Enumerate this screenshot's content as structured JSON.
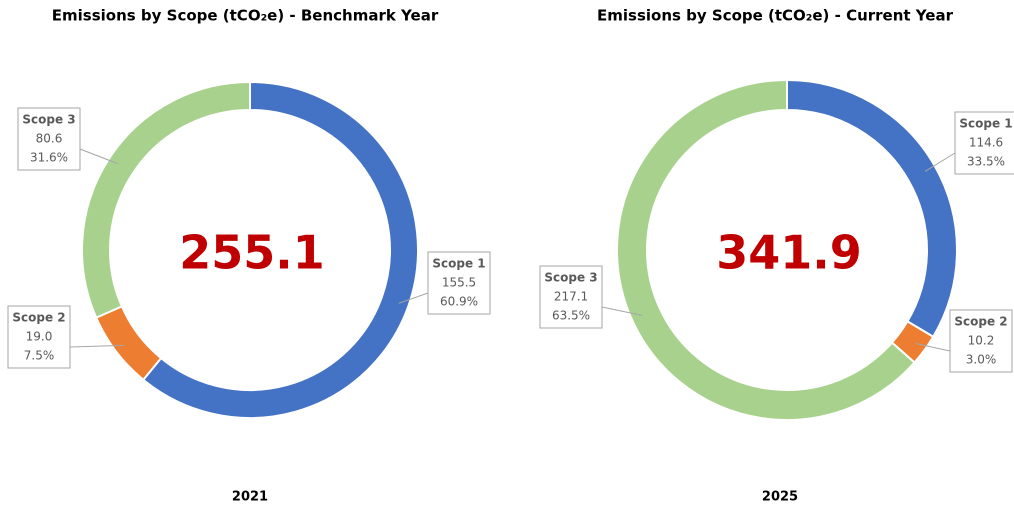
{
  "chart_data": [
    {
      "type": "doughnut",
      "title": "Emissions by Scope (tCO₂e) - Benchmark Year",
      "categories": [
        "Scope 1",
        "Scope 2",
        "Scope 3"
      ],
      "values": [
        155.5,
        19.0,
        80.6
      ],
      "value_labels": [
        "155.5",
        "19.0",
        "80.6"
      ],
      "percentages": [
        {
          "value": 60.9,
          "label": "60.9%"
        },
        {
          "value": 7.5,
          "label": "7.5%"
        },
        {
          "value": 31.6,
          "label": "31.6%"
        }
      ],
      "colors": [
        "#4472c4",
        "#ed7d31",
        "#a9d18e"
      ],
      "total": 255.1,
      "xlabel": "2021"
    },
    {
      "type": "doughnut",
      "title": "Emissions by Scope (tCO₂e) - Current Year",
      "categories": [
        "Scope 1",
        "Scope 2",
        "Scope 3"
      ],
      "values": [
        114.6,
        10.2,
        217.1
      ],
      "value_labels": [
        "114.6",
        "10.2",
        "217.1"
      ],
      "percentages": [
        {
          "value": 33.5,
          "label": "33.5%"
        },
        {
          "value": 3.0,
          "label": "3.0%"
        },
        {
          "value": 63.5,
          "label": "63.5%"
        }
      ],
      "colors": [
        "#4472c4",
        "#ed7d31",
        "#a9d18e"
      ],
      "total": 341.9,
      "xlabel": "2025"
    }
  ]
}
